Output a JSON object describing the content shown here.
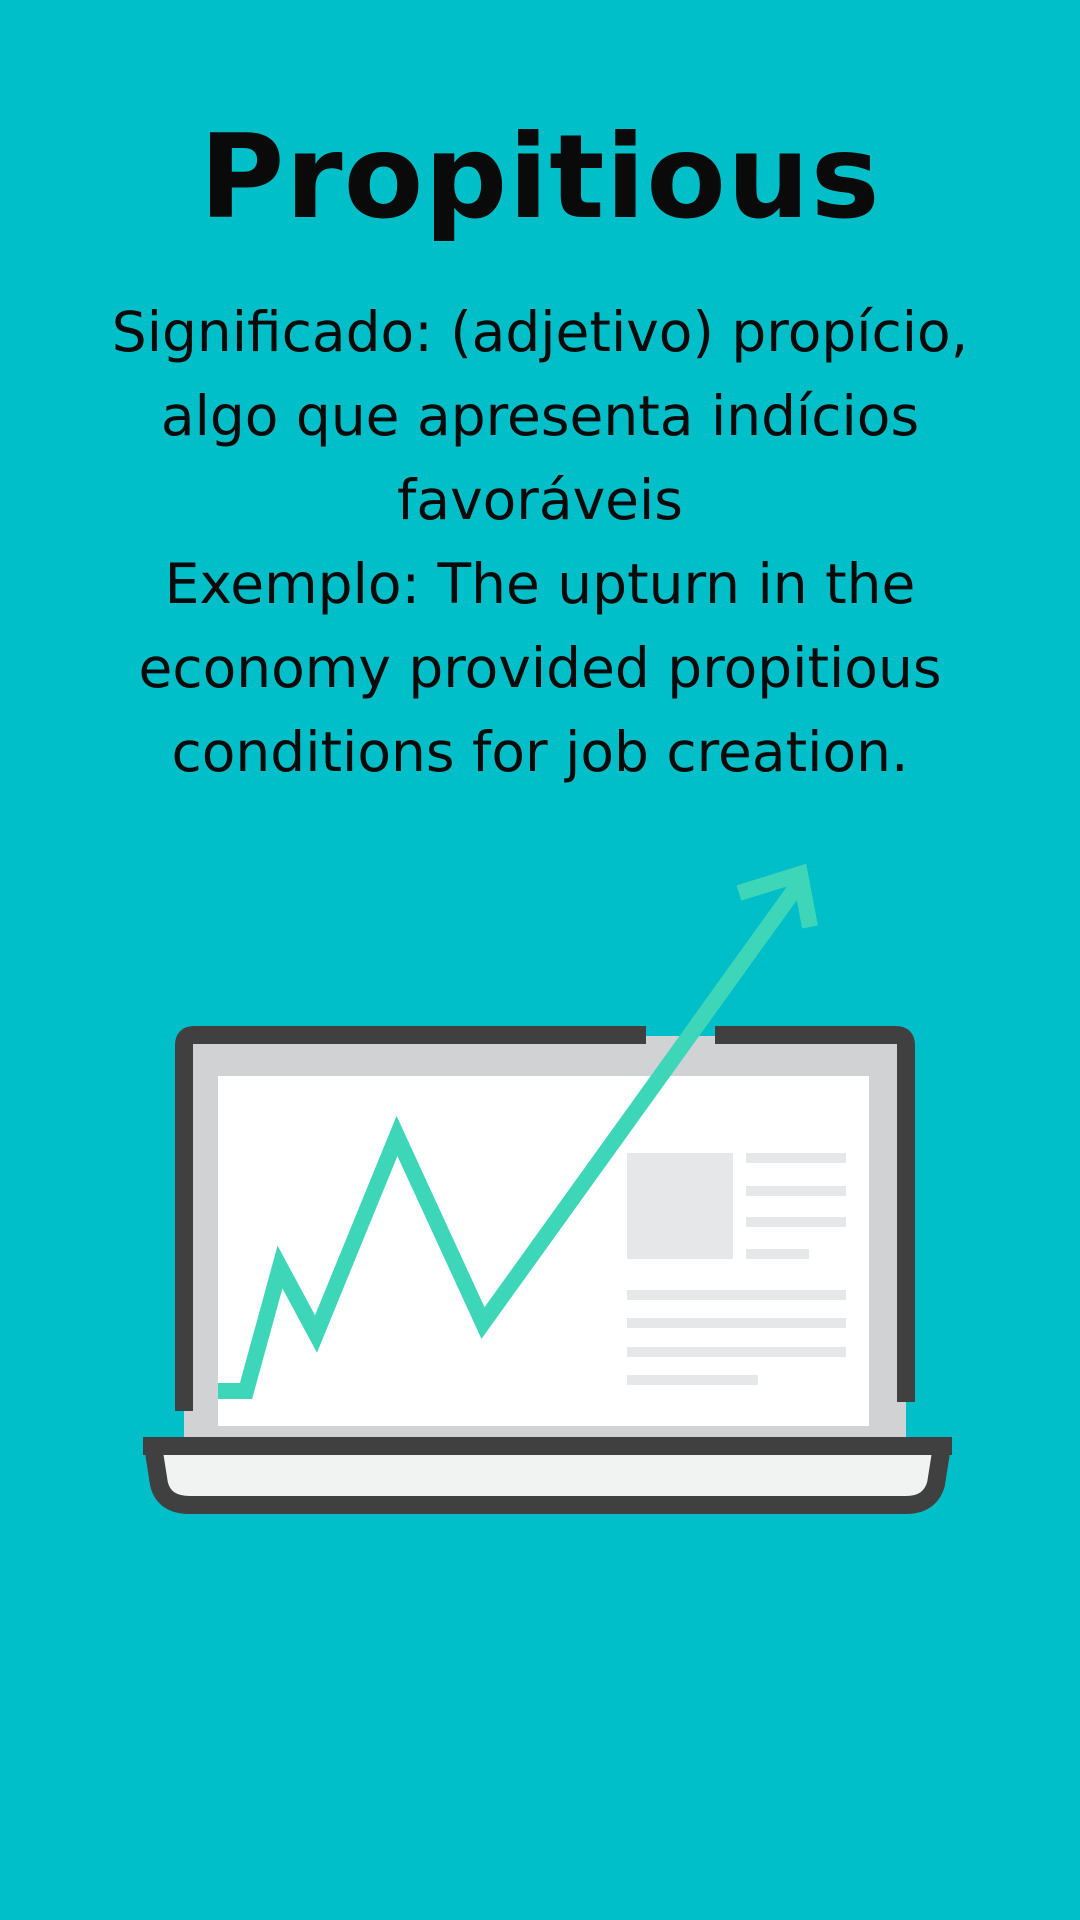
{
  "title": "Propitious",
  "meaning_lines": [
    "Significado: (adjetivo) propício,",
    "algo que apresenta indícios",
    "favoráveis"
  ],
  "example_lines": [
    "Exemplo: The upturn in the",
    "economy provided propitious",
    "conditions for job creation."
  ],
  "colors": {
    "background": "#00bfc8",
    "accent": "#3dd6b8",
    "laptop_frame": "#404041",
    "screen_bezel": "#d1d2d4",
    "screen": "#ffffff",
    "placeholder": "#e6e7e8"
  }
}
